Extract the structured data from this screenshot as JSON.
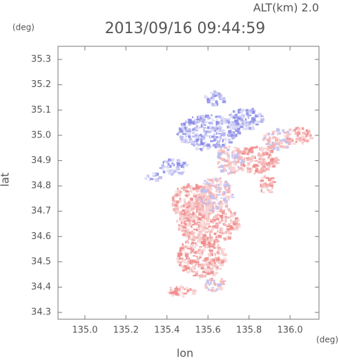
{
  "chart_data": {
    "type": "scatter",
    "title": "2013/09/16 09:44:59",
    "annotation": "ALT(km) 2.0",
    "x_label": "lon",
    "y_label": "lat",
    "x_unit": "(deg)",
    "y_unit": "(deg)",
    "xlim": [
      134.869,
      136.141
    ],
    "ylim": [
      34.273,
      35.352
    ],
    "xticks": [
      {
        "value": 135,
        "label": "135.0"
      },
      135.2,
      135.4,
      135.6,
      135.8,
      {
        "value": 136,
        "label": "136.0"
      }
    ],
    "yticks": [
      34.3,
      34.4,
      34.5,
      34.6,
      34.7,
      34.8,
      34.9,
      {
        "value": 35,
        "label": "35.0"
      },
      35.1,
      35.2,
      35.3
    ]
  }
}
